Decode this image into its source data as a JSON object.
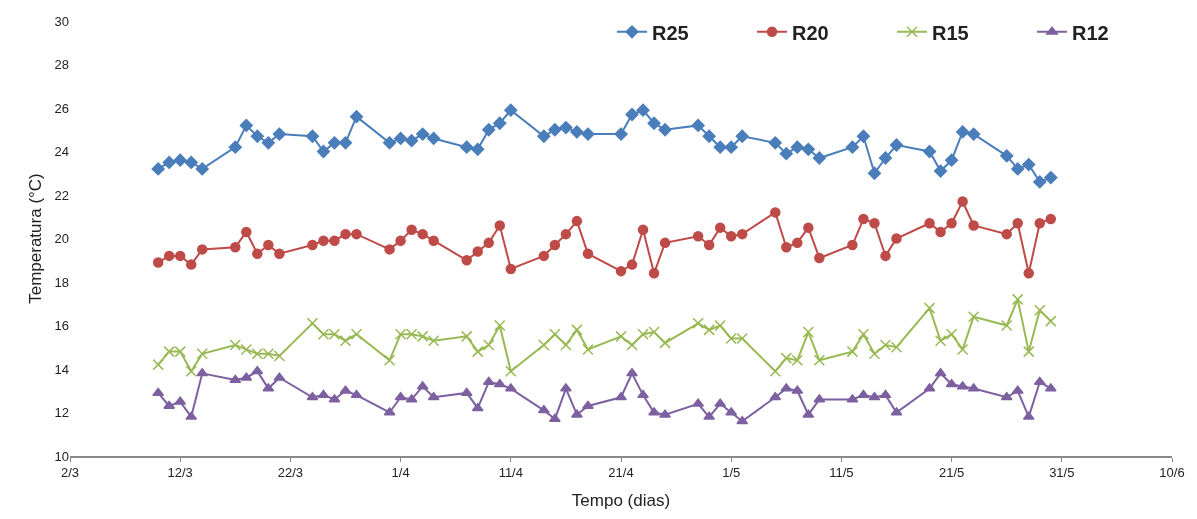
{
  "chart_data": {
    "type": "line",
    "xlabel": "Tempo (dias)",
    "ylabel": "Temperatura (°C)",
    "x": [
      "--03-10",
      "--03-11",
      "--03-12",
      "--03-13",
      "--03-14",
      "--03-17",
      "--03-18",
      "--03-19",
      "--03-20",
      "--03-21",
      "--03-24",
      "--03-25",
      "--03-26",
      "--03-27",
      "--03-28",
      "--03-31",
      "--04-01",
      "--04-02",
      "--04-03",
      "--04-04",
      "--04-07",
      "--04-08",
      "--04-09",
      "--04-10",
      "--04-11",
      "--04-14",
      "--04-15",
      "--04-16",
      "--04-17",
      "--04-18",
      "--04-21",
      "--04-22",
      "--04-23",
      "--04-24",
      "--04-25",
      "--04-28",
      "--04-29",
      "--04-30",
      "--05-01",
      "--05-02",
      "--05-05",
      "--05-06",
      "--05-07",
      "--05-08",
      "--05-09",
      "--05-12",
      "--05-13",
      "--05-14",
      "--05-15",
      "--05-16",
      "--05-19",
      "--05-20",
      "--05-21",
      "--05-22",
      "--05-23",
      "--05-26",
      "--05-27",
      "--05-28",
      "--05-29",
      "--05-30"
    ],
    "series": [
      {
        "name": "R25",
        "color": "#4a7ebb",
        "marker": "diamond",
        "values": [
          23.2,
          23.5,
          23.6,
          23.5,
          23.2,
          24.2,
          25.2,
          24.7,
          24.4,
          24.8,
          24.7,
          24.0,
          24.4,
          24.4,
          25.6,
          24.4,
          24.6,
          24.5,
          24.8,
          24.6,
          24.2,
          24.1,
          25.0,
          25.3,
          25.9,
          24.7,
          25.0,
          25.1,
          24.9,
          24.8,
          24.8,
          25.7,
          25.9,
          25.3,
          25.0,
          25.2,
          24.7,
          24.2,
          24.2,
          24.7,
          24.4,
          23.9,
          24.2,
          24.1,
          23.7,
          24.2,
          24.7,
          23.0,
          23.7,
          24.3,
          24.0,
          23.1,
          23.6,
          24.9,
          24.8,
          23.8,
          23.2,
          23.4,
          22.6,
          22.8
        ]
      },
      {
        "name": "R20",
        "color": "#be4b48",
        "marker": "circle",
        "values": [
          18.9,
          19.2,
          19.2,
          18.8,
          19.5,
          19.6,
          20.3,
          19.3,
          19.7,
          19.3,
          19.7,
          19.9,
          19.9,
          20.2,
          20.2,
          19.5,
          19.9,
          20.4,
          20.2,
          19.9,
          19.0,
          19.4,
          19.8,
          20.6,
          18.6,
          19.2,
          19.7,
          20.2,
          20.8,
          19.3,
          18.5,
          18.8,
          20.4,
          18.4,
          19.8,
          20.1,
          19.7,
          20.5,
          20.1,
          20.2,
          21.2,
          19.6,
          19.8,
          20.5,
          19.1,
          19.7,
          20.9,
          20.7,
          19.2,
          20.0,
          20.7,
          20.3,
          20.7,
          21.7,
          20.6,
          20.2,
          20.7,
          18.4,
          20.7,
          20.9
        ]
      },
      {
        "name": "R15",
        "color": "#98b954",
        "marker": "cross",
        "values": [
          14.2,
          14.8,
          14.8,
          13.9,
          14.7,
          15.1,
          14.9,
          14.7,
          14.7,
          14.6,
          16.1,
          15.6,
          15.6,
          15.3,
          15.6,
          14.4,
          15.6,
          15.6,
          15.5,
          15.3,
          15.5,
          14.8,
          15.1,
          16.0,
          13.9,
          15.1,
          15.6,
          15.1,
          15.8,
          14.9,
          15.5,
          15.1,
          15.6,
          15.7,
          15.2,
          16.1,
          15.8,
          16.0,
          15.4,
          15.4,
          13.9,
          14.5,
          14.4,
          15.7,
          14.4,
          14.8,
          15.6,
          14.7,
          15.1,
          15.0,
          16.8,
          15.3,
          15.6,
          14.9,
          16.4,
          16.0,
          17.2,
          14.8,
          16.7,
          16.2
        ]
      },
      {
        "name": "R12",
        "color": "#7d60a0",
        "marker": "triangle",
        "values": [
          12.9,
          12.3,
          12.5,
          11.8,
          13.8,
          13.5,
          13.6,
          13.9,
          13.1,
          13.6,
          12.7,
          12.8,
          12.6,
          13.0,
          12.8,
          12.0,
          12.7,
          12.6,
          13.2,
          12.7,
          12.9,
          12.2,
          13.4,
          13.3,
          13.1,
          12.1,
          11.7,
          13.1,
          11.9,
          12.3,
          12.7,
          13.8,
          12.8,
          12.0,
          11.9,
          12.4,
          11.8,
          12.4,
          12.0,
          11.6,
          12.7,
          13.1,
          13.0,
          11.9,
          12.6,
          12.6,
          12.8,
          12.7,
          12.8,
          12.0,
          13.1,
          13.8,
          13.3,
          13.2,
          13.1,
          12.7,
          13.0,
          11.8,
          13.4,
          13.1
        ]
      }
    ],
    "xlim": [
      "--03-02",
      "--06-10"
    ],
    "xticks": [
      {
        "value": "--03-02",
        "label": "2/3"
      },
      {
        "value": "--03-12",
        "label": "12/3"
      },
      {
        "value": "--03-22",
        "label": "22/3"
      },
      {
        "value": "--04-01",
        "label": "1/4"
      },
      {
        "value": "--04-11",
        "label": "11/4"
      },
      {
        "value": "--04-21",
        "label": "21/4"
      },
      {
        "value": "--05-01",
        "label": "1/5"
      },
      {
        "value": "--05-11",
        "label": "11/5"
      },
      {
        "value": "--05-21",
        "label": "21/5"
      },
      {
        "value": "--05-31",
        "label": "31/5"
      },
      {
        "value": "--06-10",
        "label": "10/6"
      }
    ],
    "ylim": [
      10,
      30
    ],
    "yticks": [
      10,
      12,
      14,
      16,
      18,
      20,
      22,
      24,
      26,
      28,
      30
    ],
    "grid": false,
    "legend": "top right"
  }
}
